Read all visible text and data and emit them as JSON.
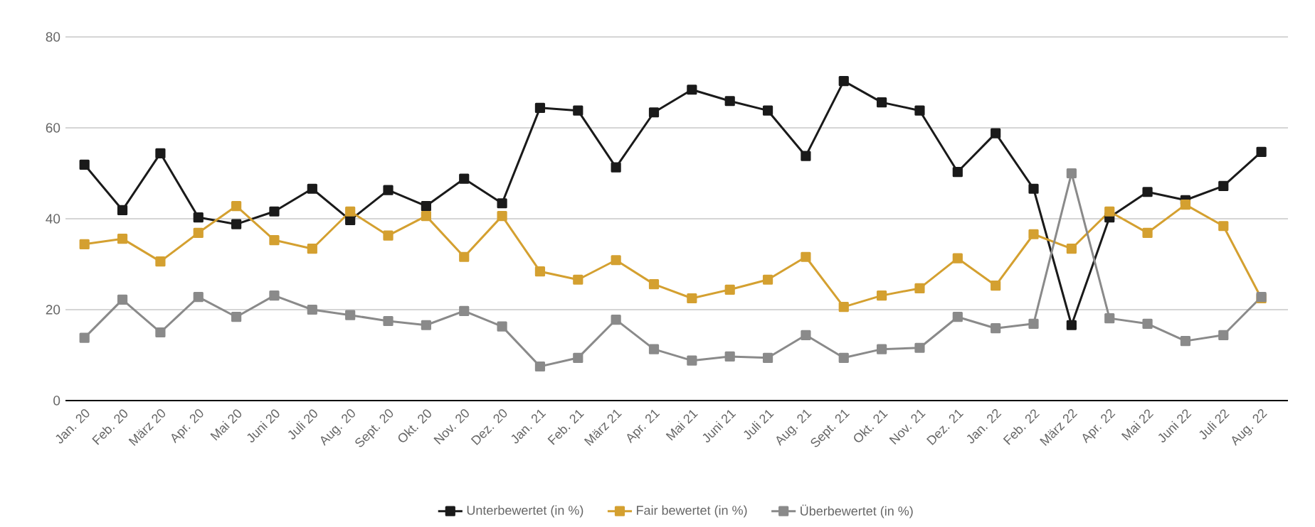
{
  "chart_data": {
    "type": "line",
    "categories": [
      "Jan. 20",
      "Feb. 20",
      "März 20",
      "Apr. 20",
      "Mai 20",
      "Juni 20",
      "Juli 20",
      "Aug. 20",
      "Sept. 20",
      "Okt. 20",
      "Nov. 20",
      "Dez. 20",
      "Jan. 21",
      "Feb. 21",
      "März 21",
      "Apr. 21",
      "Mai 21",
      "Juni 21",
      "Juli 21",
      "Aug. 21",
      "Sept. 21",
      "Okt. 21",
      "Nov. 21",
      "Dez. 21",
      "Jan. 22",
      "Feb. 22",
      "März 22",
      "Apr. 22",
      "Mai 22",
      "Juni 22",
      "Juli 22",
      "Aug. 22"
    ],
    "series": [
      {
        "name": "Unterbewertet (in %)",
        "color": "#1a1a1a",
        "values": [
          51.9,
          41.9,
          54.4,
          40.3,
          38.8,
          41.6,
          46.6,
          39.7,
          46.3,
          42.8,
          48.8,
          43.4,
          64.4,
          63.8,
          51.3,
          63.4,
          68.4,
          65.9,
          63.8,
          53.8,
          70.3,
          65.6,
          63.8,
          50.3,
          58.8,
          46.6,
          16.6,
          40.3,
          45.9,
          44.1,
          47.2,
          54.7
        ]
      },
      {
        "name": "Fair bewertet (in %)",
        "color": "#d4a030",
        "values": [
          34.4,
          35.6,
          30.6,
          36.9,
          42.8,
          35.3,
          33.4,
          41.6,
          36.3,
          40.6,
          31.6,
          40.6,
          28.4,
          26.6,
          30.9,
          25.6,
          22.5,
          24.4,
          26.6,
          31.6,
          20.6,
          23.1,
          24.7,
          31.3,
          25.3,
          36.6,
          33.4,
          41.6,
          36.9,
          43.1,
          38.4,
          22.5
        ]
      },
      {
        "name": "Überbewertet (in %)",
        "color": "#8a8a8a",
        "values": [
          13.8,
          22.2,
          15.0,
          22.8,
          18.4,
          23.1,
          20.0,
          18.8,
          17.5,
          16.6,
          19.7,
          16.3,
          7.5,
          9.4,
          17.8,
          11.3,
          8.8,
          9.7,
          9.4,
          14.4,
          9.4,
          11.3,
          11.6,
          18.4,
          15.9,
          16.9,
          50.0,
          18.1,
          16.9,
          13.1,
          14.4,
          22.8
        ]
      }
    ],
    "ylim": [
      0,
      80
    ],
    "yticks": [
      0,
      20,
      40,
      60,
      80
    ],
    "grid": "y",
    "legend": "bottom",
    "marker": "square",
    "line_style": "solid"
  }
}
